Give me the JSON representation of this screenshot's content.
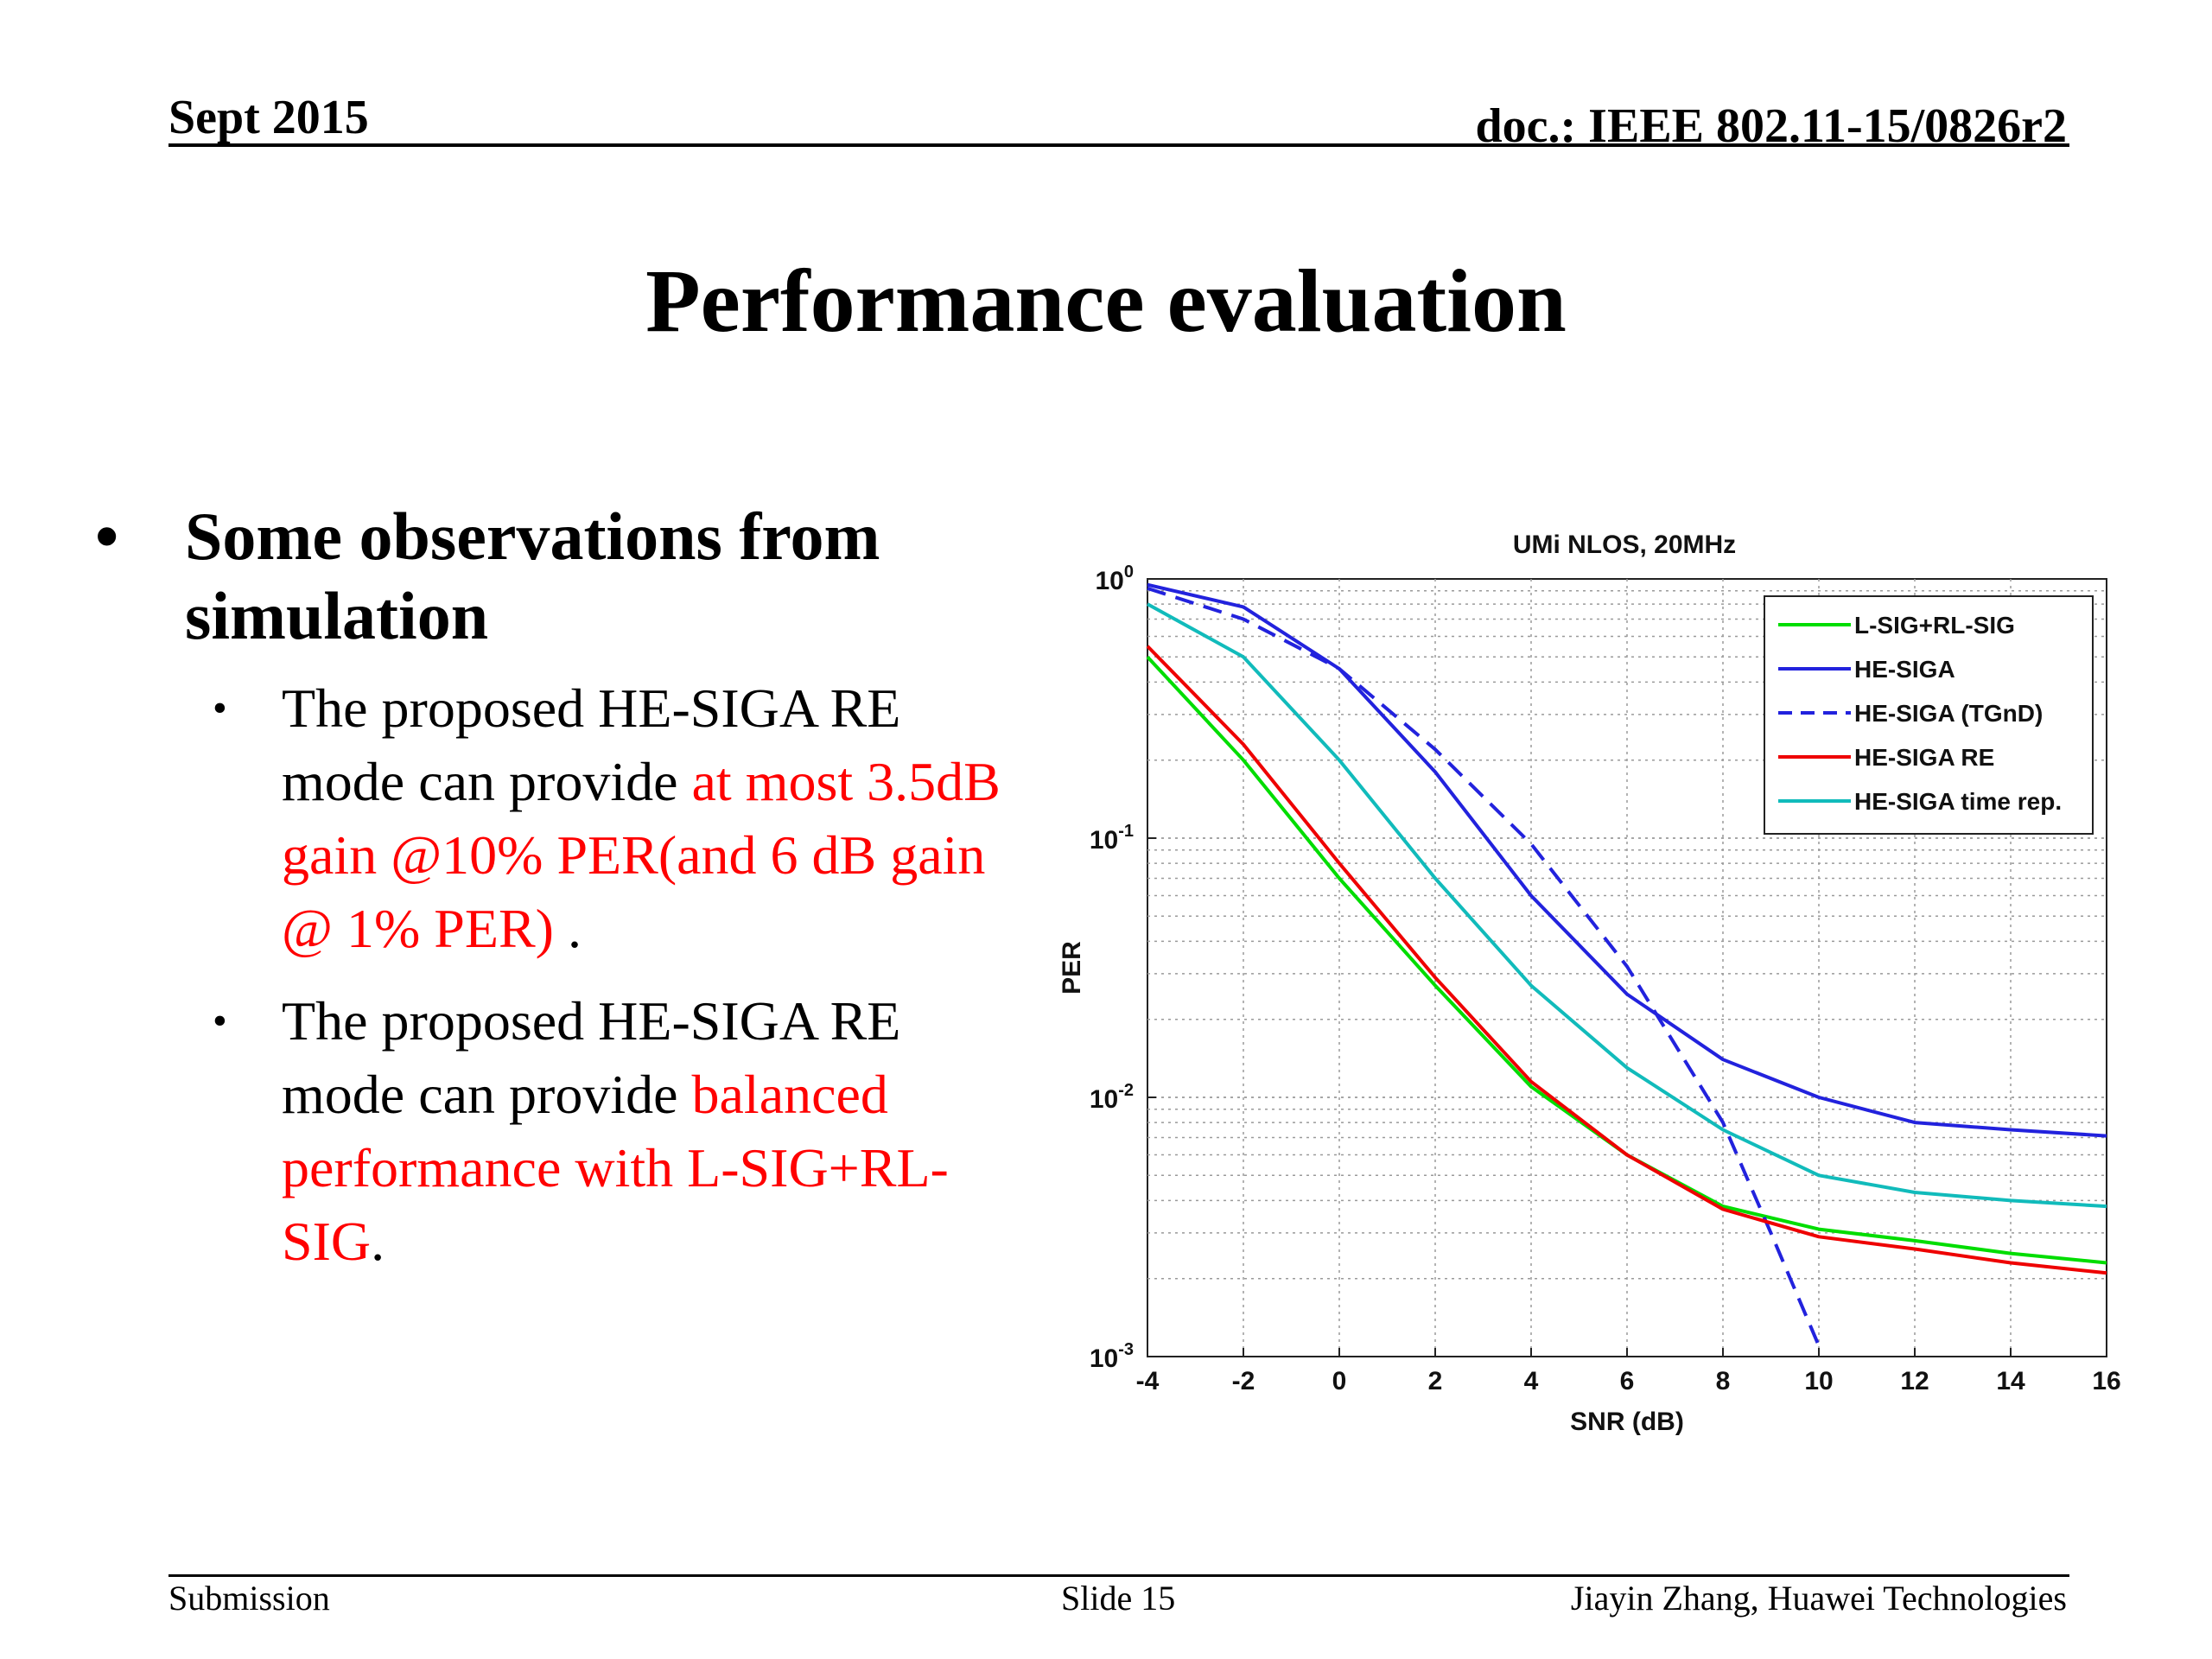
{
  "header": {
    "date": "Sept 2015",
    "doc": "doc.: IEEE 802.11-15/0826r2"
  },
  "title": "Performance evaluation",
  "bullets": {
    "main": "Some observations from simulation",
    "sub1": {
      "pre": "The proposed HE-SIGA RE mode can provide ",
      "red": "at most 3.5dB gain @10% PER(and 6 dB gain @ 1% PER)",
      "post": " ."
    },
    "sub2": {
      "pre": "The proposed HE-SIGA RE mode can provide ",
      "red": "balanced performance with L-SIG+RL-SIG",
      "post": "."
    }
  },
  "footer": {
    "left": "Submission",
    "center": "Slide 15",
    "right": "Jiayin Zhang, Huawei Technologies"
  },
  "chart_data": {
    "type": "line",
    "title": "UMi NLOS, 20MHz",
    "xlabel": "SNR (dB)",
    "ylabel": "PER",
    "xlim": [
      -4,
      16
    ],
    "ylim": [
      0.001,
      1
    ],
    "yscale": "log",
    "xticks": [
      -4,
      -2,
      0,
      2,
      4,
      6,
      8,
      10,
      12,
      14,
      16
    ],
    "yticks": [
      0.001,
      0.01,
      0.1,
      1
    ],
    "yticklabels": [
      {
        "base": "10",
        "exp": "-3"
      },
      {
        "base": "10",
        "exp": "-2"
      },
      {
        "base": "10",
        "exp": "-1"
      },
      {
        "base": "10",
        "exp": "0"
      }
    ],
    "grid": true,
    "legend_position": "top-right",
    "series": [
      {
        "name": "L-SIG+RL-SIG",
        "color": "#00dd00",
        "dash": false,
        "x": [
          -4,
          -2,
          0,
          2,
          4,
          6,
          8,
          10,
          12,
          14,
          16
        ],
        "y": [
          0.5,
          0.2,
          0.07,
          0.027,
          0.011,
          0.006,
          0.0038,
          0.0031,
          0.0028,
          0.0025,
          0.0023
        ]
      },
      {
        "name": "HE-SIGA",
        "color": "#2222dd",
        "dash": false,
        "x": [
          -4,
          -2,
          0,
          2,
          4,
          6,
          8,
          10,
          12,
          14,
          16
        ],
        "y": [
          0.95,
          0.78,
          0.45,
          0.18,
          0.06,
          0.025,
          0.014,
          0.01,
          0.008,
          0.0075,
          0.0071
        ]
      },
      {
        "name": "HE-SIGA (TGnD)",
        "color": "#2222dd",
        "dash": true,
        "x": [
          -4,
          -2,
          0,
          2,
          4,
          6,
          8,
          9,
          10
        ],
        "y": [
          0.92,
          0.7,
          0.45,
          0.22,
          0.095,
          0.032,
          0.008,
          0.003,
          0.0011
        ]
      },
      {
        "name": "HE-SIGA RE",
        "color": "#ee0000",
        "dash": false,
        "x": [
          -4,
          -2,
          0,
          2,
          4,
          6,
          8,
          10,
          12,
          14,
          16
        ],
        "y": [
          0.55,
          0.23,
          0.08,
          0.029,
          0.0115,
          0.006,
          0.0037,
          0.0029,
          0.0026,
          0.0023,
          0.0021
        ]
      },
      {
        "name": "HE-SIGA time rep.",
        "color": "#11bbbb",
        "dash": false,
        "x": [
          -4,
          -2,
          0,
          2,
          4,
          6,
          8,
          10,
          12,
          14,
          16
        ],
        "y": [
          0.8,
          0.5,
          0.2,
          0.07,
          0.027,
          0.013,
          0.0075,
          0.005,
          0.0043,
          0.004,
          0.0038
        ]
      }
    ]
  }
}
